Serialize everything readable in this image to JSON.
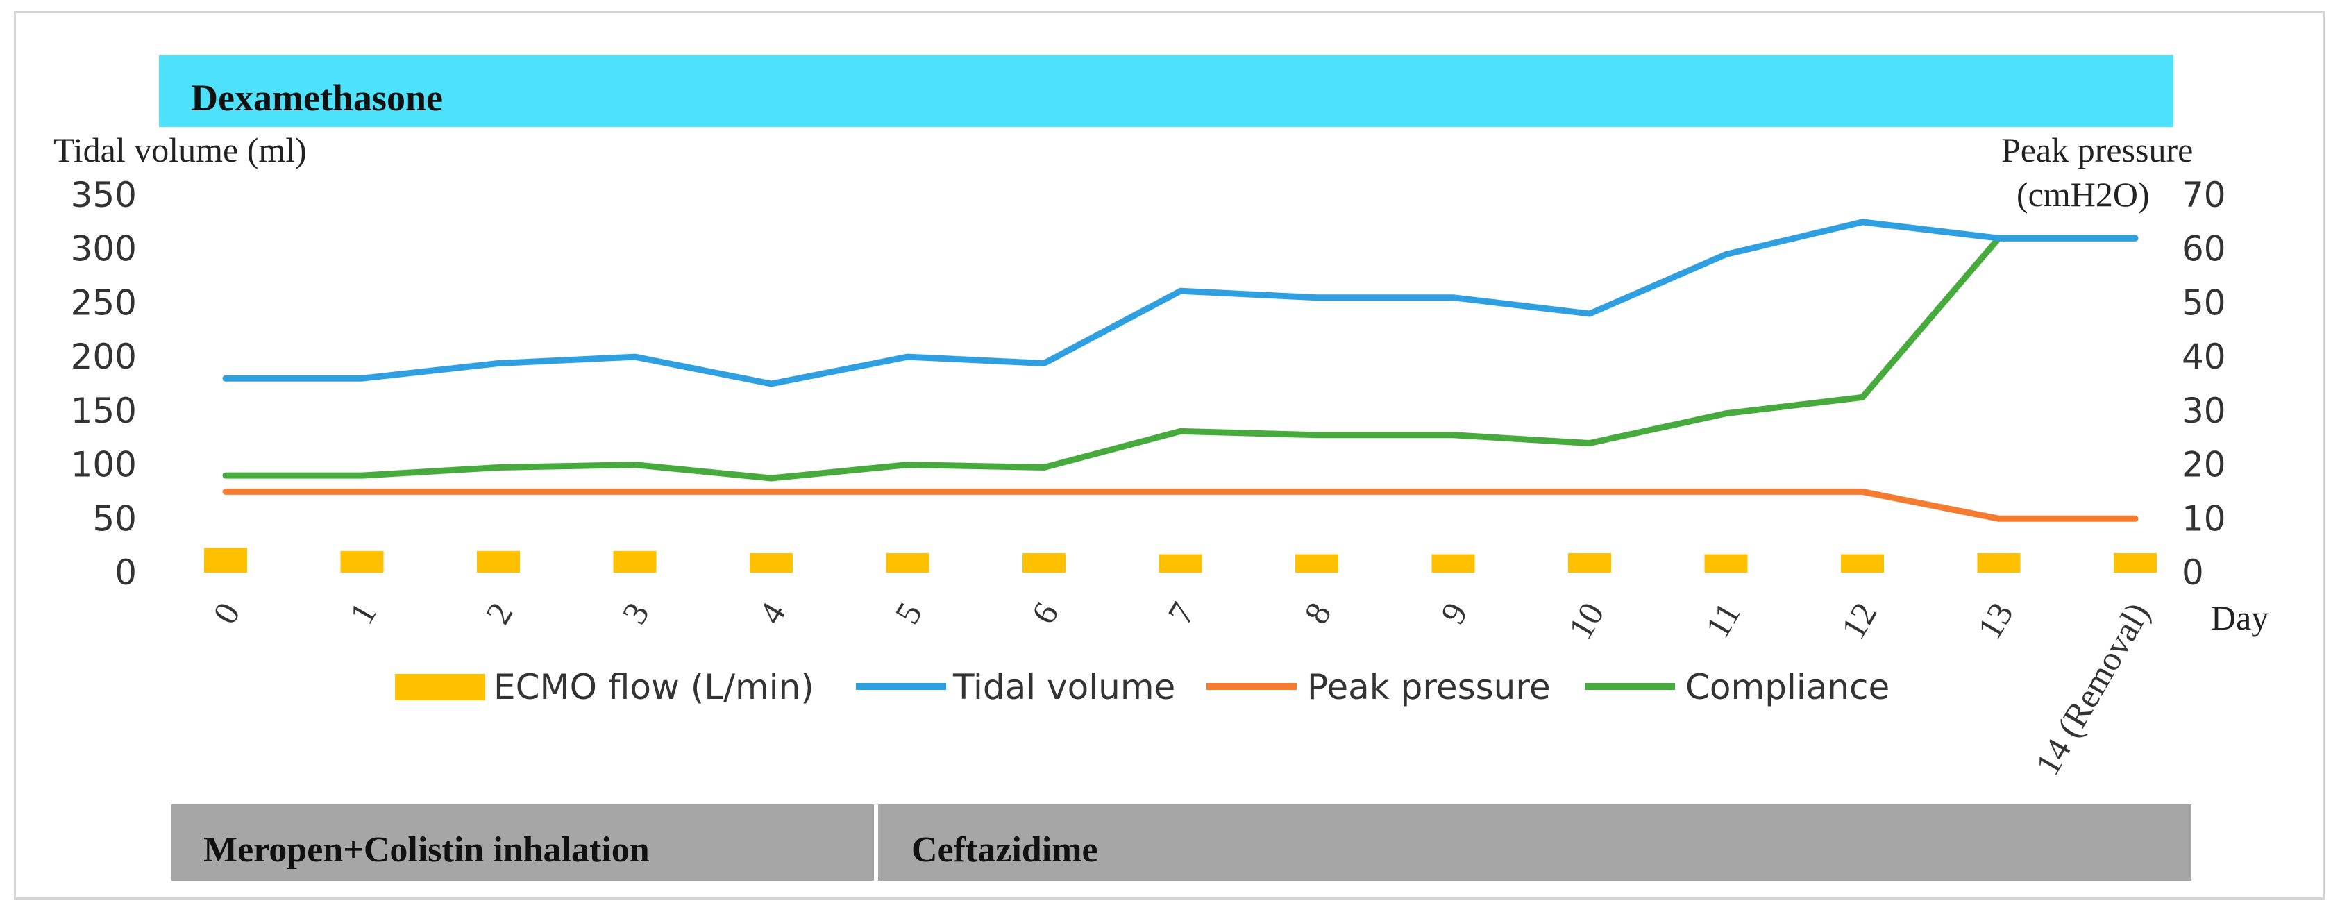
{
  "header_bar": {
    "label": "Dexamethasone",
    "color": "#4de1fb"
  },
  "footer_bars": [
    {
      "label": "Meropen+Colistin inhalation",
      "color": "#a6a6a6"
    },
    {
      "label": "Ceftazidime",
      "color": "#a6a6a6"
    }
  ],
  "chart_data": {
    "type": "bar+line",
    "categories": [
      "0",
      "1",
      "2",
      "3",
      "4",
      "5",
      "6",
      "7",
      "8",
      "9",
      "10",
      "11",
      "12",
      "13",
      "14 (Removal)"
    ],
    "xlabel": "Day",
    "ylabel_left": "Tidal volume (ml)",
    "ylabel_right_line1": "Peak pressure",
    "ylabel_right_line2": "(cmH2O)",
    "ylim_left": [
      0,
      350
    ],
    "yticks_left": [
      0,
      50,
      100,
      150,
      200,
      250,
      300,
      350
    ],
    "ylim_right": [
      0,
      70
    ],
    "yticks_right": [
      0,
      10,
      20,
      30,
      40,
      50,
      60,
      70
    ],
    "grid": false,
    "legend_position": "bottom",
    "series": [
      {
        "name": "ECMO flow (L/min)",
        "type": "bar",
        "axis": "right",
        "color": "#ffc000",
        "values": [
          4.6,
          4.0,
          4.0,
          4.0,
          3.6,
          3.6,
          3.6,
          3.4,
          3.4,
          3.4,
          3.6,
          3.4,
          3.4,
          3.6,
          3.6
        ]
      },
      {
        "name": "Tidal volume",
        "type": "line",
        "axis": "left",
        "color": "#2e9fe0",
        "values": [
          180,
          180,
          194,
          200,
          175,
          200,
          194,
          261,
          255,
          255,
          240,
          295,
          325,
          310,
          310
        ]
      },
      {
        "name": "Peak pressure",
        "type": "line",
        "axis": "right",
        "color": "#f47b30",
        "values": [
          15,
          15,
          15,
          15,
          15,
          15,
          15,
          15,
          15,
          15,
          15,
          15,
          15,
          10,
          10
        ]
      },
      {
        "name": "Compliance",
        "type": "line",
        "axis": "right",
        "color": "#46aa3c",
        "values": [
          18,
          18,
          19.5,
          20,
          17.5,
          20,
          19.5,
          26.2,
          25.5,
          25.5,
          24,
          29.5,
          32.5,
          62,
          62
        ]
      }
    ]
  }
}
